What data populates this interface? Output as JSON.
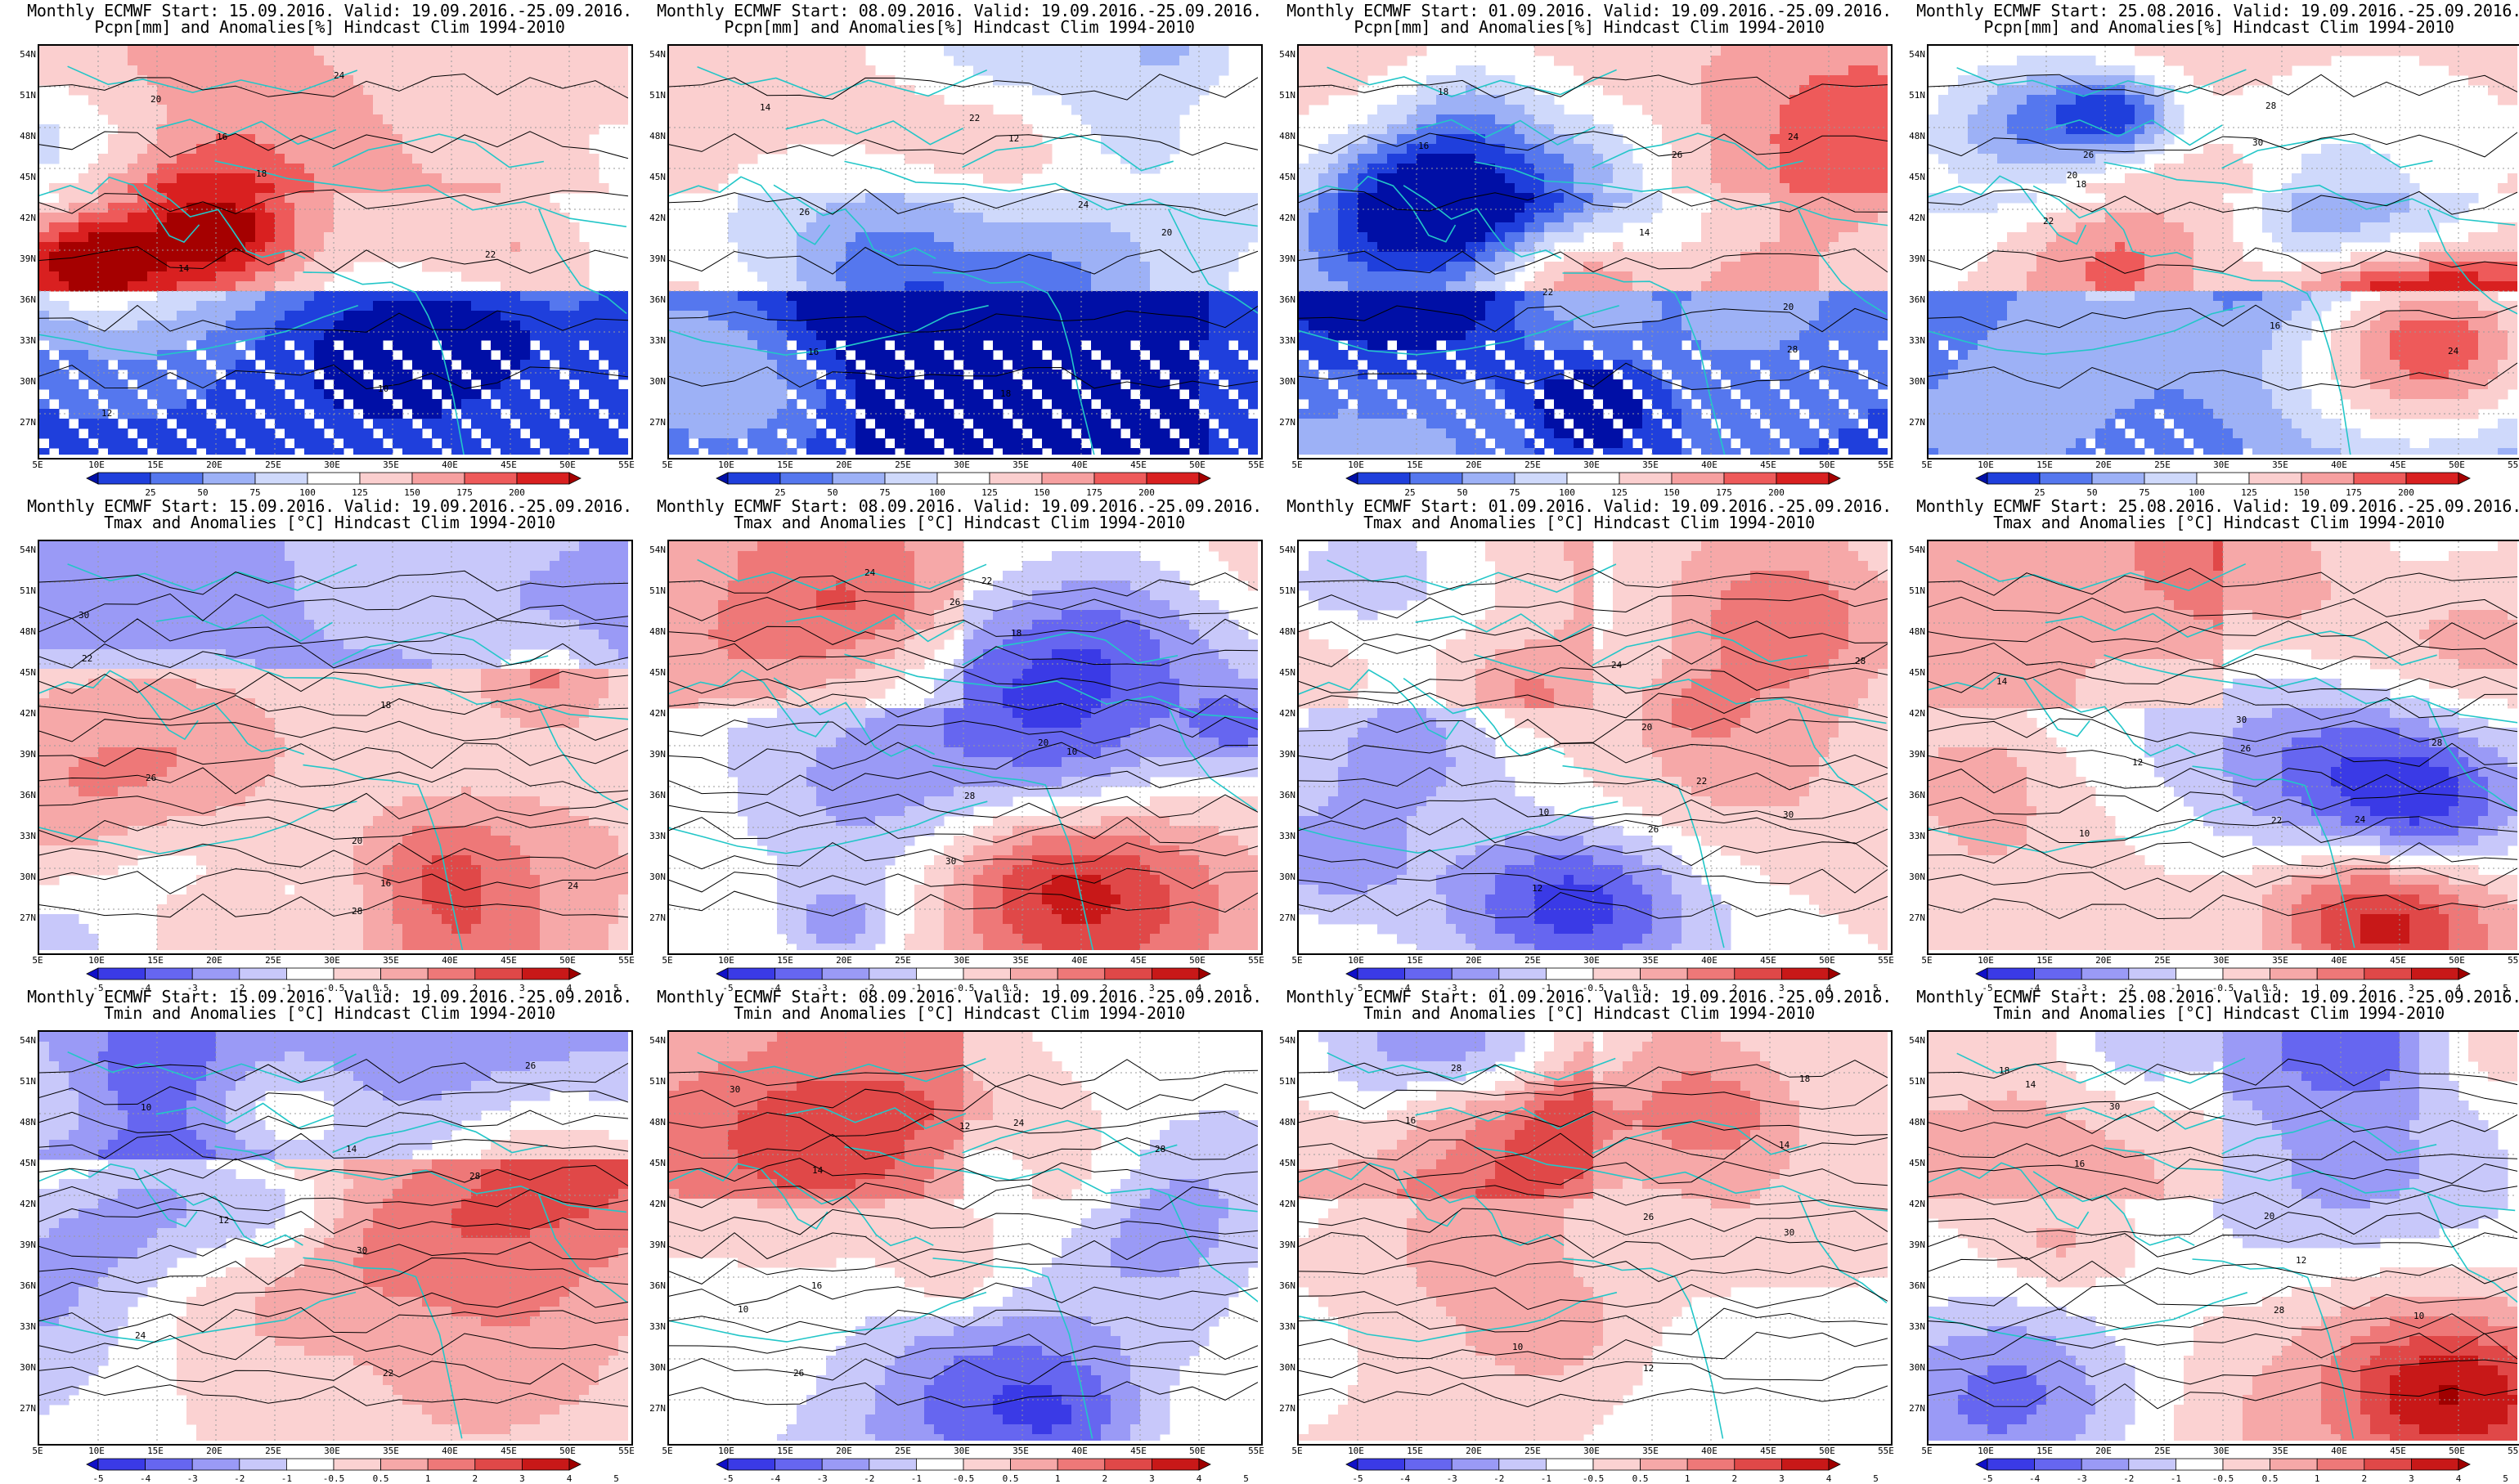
{
  "product": "Monthly ECMWF",
  "valid": "19.09.2016.-25.09.2016.",
  "columns": [
    {
      "start": "15.09.2016."
    },
    {
      "start": "08.09.2016."
    },
    {
      "start": "01.09.2016."
    },
    {
      "start": "25.08.2016."
    }
  ],
  "rows": [
    {
      "variable": "Pcpn[mm] and Anomalies[%] Hindcast Clim 1994-2010",
      "colorbar": [
        "25",
        "50",
        "75",
        "100",
        "125",
        "150",
        "175",
        "200"
      ]
    },
    {
      "variable": "Tmax and Anomalies [°C] Hindcast Clim 1994-2010",
      "colorbar": [
        "-5",
        "-4",
        "-3",
        "-2",
        "-1",
        "-0.5",
        "0.5",
        "1",
        "2",
        "3",
        "4",
        "5"
      ]
    },
    {
      "variable": "Tmin and Anomalies [°C] Hindcast Clim 1994-2010",
      "colorbar": [
        "-5",
        "-4",
        "-3",
        "-2",
        "-1",
        "-0.5",
        "0.5",
        "1",
        "2",
        "3",
        "4",
        "5"
      ]
    }
  ],
  "lat_labels": [
    "54N",
    "51N",
    "48N",
    "45N",
    "42N",
    "39N",
    "36N",
    "33N",
    "30N",
    "27N"
  ],
  "lon_labels": [
    "5E",
    "10E",
    "15E",
    "20E",
    "25E",
    "30E",
    "35E",
    "40E",
    "45E",
    "50E",
    "55E"
  ],
  "colors": {
    "pcp_scale": [
      "#000fa6",
      "#1f3fdc",
      "#5577ee",
      "#9db1f6",
      "#cfd9fb",
      "#ffffff",
      "#fbcfcf",
      "#f6a0a0",
      "#ee5a5a",
      "#d92020",
      "#a50000"
    ],
    "temp_scale": [
      "#1010c8",
      "#3a3ae6",
      "#6666f0",
      "#9a9af6",
      "#c8c8fa",
      "#ffffff",
      "#fbd2d2",
      "#f6a8a8",
      "#ee7878",
      "#e04848",
      "#c81818",
      "#a00000"
    ],
    "coastline": "#23c6c8",
    "contour": "#000000",
    "grid": "#9a9a9a"
  },
  "contour_labels_sample": [
    "10",
    "12",
    "14",
    "16",
    "18",
    "20",
    "22",
    "24",
    "26",
    "28",
    "30"
  ]
}
